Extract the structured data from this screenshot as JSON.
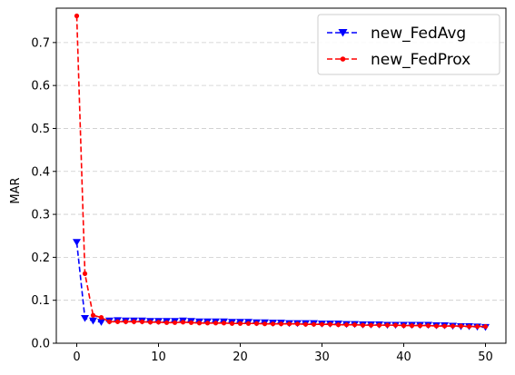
{
  "chart_data": {
    "type": "line",
    "title": "",
    "xlabel": "",
    "ylabel": "MAR",
    "xlim": [
      -2.5,
      52.5
    ],
    "ylim": [
      0.0,
      0.78
    ],
    "xticks": [
      0,
      10,
      20,
      30,
      40,
      50
    ],
    "yticks": [
      0.0,
      0.1,
      0.2,
      0.3,
      0.4,
      0.5,
      0.6,
      0.7
    ],
    "grid": "y-dashed",
    "legend": "top-right",
    "x": [
      0,
      1,
      2,
      3,
      4,
      5,
      6,
      7,
      8,
      9,
      10,
      11,
      12,
      13,
      14,
      15,
      16,
      17,
      18,
      19,
      20,
      21,
      22,
      23,
      24,
      25,
      26,
      27,
      28,
      29,
      30,
      31,
      32,
      33,
      34,
      35,
      36,
      37,
      38,
      39,
      40,
      41,
      42,
      43,
      44,
      45,
      46,
      47,
      48,
      49,
      50
    ],
    "series": [
      {
        "name": "new_FedAvg",
        "color": "#0000ff",
        "marker": "triangle-down",
        "values": [
          0.235,
          0.058,
          0.052,
          0.049,
          0.052,
          0.053,
          0.052,
          0.052,
          0.052,
          0.051,
          0.051,
          0.051,
          0.051,
          0.052,
          0.051,
          0.05,
          0.05,
          0.05,
          0.05,
          0.049,
          0.049,
          0.049,
          0.048,
          0.048,
          0.047,
          0.047,
          0.046,
          0.046,
          0.046,
          0.046,
          0.045,
          0.045,
          0.045,
          0.044,
          0.044,
          0.043,
          0.043,
          0.043,
          0.042,
          0.042,
          0.042,
          0.042,
          0.042,
          0.042,
          0.041,
          0.041,
          0.04,
          0.039,
          0.039,
          0.038,
          0.037
        ]
      },
      {
        "name": "new_FedProx",
        "color": "#ff0000",
        "marker": "dot",
        "values": [
          0.762,
          0.162,
          0.065,
          0.06,
          0.05,
          0.05,
          0.05,
          0.05,
          0.05,
          0.049,
          0.049,
          0.048,
          0.048,
          0.049,
          0.048,
          0.047,
          0.047,
          0.047,
          0.047,
          0.046,
          0.046,
          0.046,
          0.046,
          0.045,
          0.045,
          0.045,
          0.045,
          0.045,
          0.044,
          0.044,
          0.044,
          0.044,
          0.043,
          0.043,
          0.043,
          0.042,
          0.042,
          0.042,
          0.042,
          0.042,
          0.041,
          0.041,
          0.041,
          0.041,
          0.04,
          0.04,
          0.04,
          0.04,
          0.039,
          0.039,
          0.039
        ]
      }
    ]
  }
}
